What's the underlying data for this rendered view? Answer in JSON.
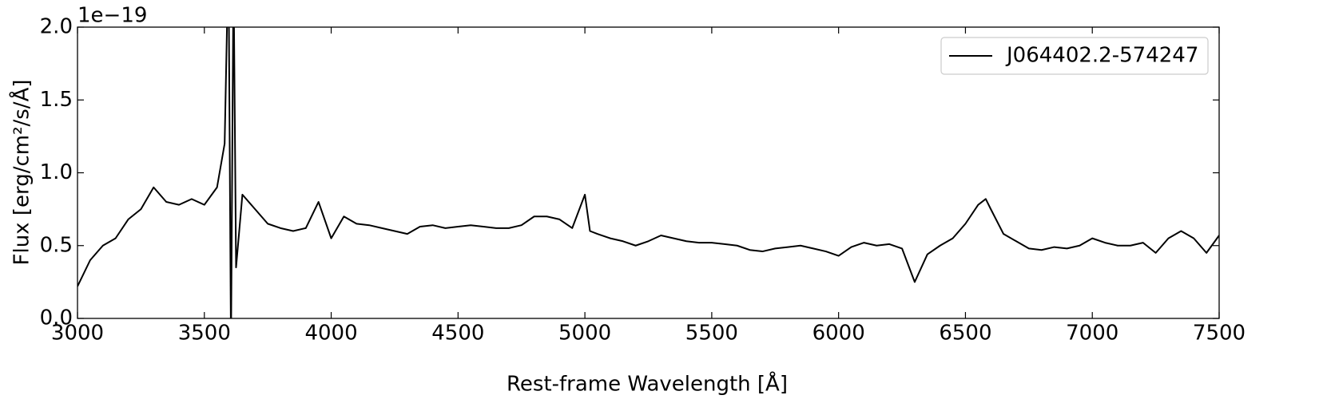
{
  "chart_data": {
    "type": "line",
    "x_label": "Rest-frame Wavelength [Å]",
    "y_label": "Flux [erg/cm²/s/Å]",
    "y_offset_label": "1e−19",
    "x": [
      3000,
      3050,
      3100,
      3150,
      3200,
      3250,
      3300,
      3350,
      3400,
      3450,
      3500,
      3550,
      3580,
      3595,
      3605,
      3615,
      3625,
      3650,
      3700,
      3750,
      3800,
      3850,
      3900,
      3950,
      4000,
      4050,
      4100,
      4150,
      4200,
      4250,
      4300,
      4350,
      4400,
      4450,
      4500,
      4550,
      4600,
      4650,
      4700,
      4750,
      4800,
      4850,
      4900,
      4950,
      5000,
      5020,
      5050,
      5100,
      5150,
      5200,
      5250,
      5300,
      5350,
      5400,
      5450,
      5500,
      5550,
      5600,
      5650,
      5700,
      5750,
      5800,
      5850,
      5900,
      5950,
      6000,
      6050,
      6100,
      6150,
      6200,
      6250,
      6300,
      6350,
      6400,
      6450,
      6500,
      6550,
      6580,
      6600,
      6650,
      6700,
      6750,
      6800,
      6850,
      6900,
      6950,
      7000,
      7050,
      7100,
      7150,
      7200,
      7250,
      7300,
      7350,
      7400,
      7450,
      7500
    ],
    "series": [
      {
        "name": "J064402.2-574247",
        "color": "#000000",
        "values": [
          0.22,
          0.4,
          0.5,
          0.55,
          0.68,
          0.75,
          0.9,
          0.8,
          0.78,
          0.82,
          0.78,
          0.9,
          1.2,
          2.5,
          -0.2,
          2.4,
          0.35,
          0.85,
          0.75,
          0.65,
          0.62,
          0.6,
          0.62,
          0.8,
          0.55,
          0.7,
          0.65,
          0.64,
          0.62,
          0.6,
          0.58,
          0.63,
          0.64,
          0.62,
          0.63,
          0.64,
          0.63,
          0.62,
          0.62,
          0.64,
          0.7,
          0.7,
          0.68,
          0.62,
          0.85,
          0.6,
          0.58,
          0.55,
          0.53,
          0.5,
          0.53,
          0.57,
          0.55,
          0.53,
          0.52,
          0.52,
          0.51,
          0.5,
          0.47,
          0.46,
          0.48,
          0.49,
          0.5,
          0.48,
          0.46,
          0.43,
          0.49,
          0.52,
          0.5,
          0.51,
          0.48,
          0.25,
          0.44,
          0.5,
          0.55,
          0.65,
          0.78,
          0.82,
          0.75,
          0.58,
          0.53,
          0.48,
          0.47,
          0.49,
          0.48,
          0.5,
          0.55,
          0.52,
          0.5,
          0.5,
          0.52,
          0.45,
          0.55,
          0.6,
          0.55,
          0.45,
          0.57
        ]
      }
    ],
    "xlim": [
      3000,
      7500
    ],
    "ylim": [
      0,
      2
    ],
    "xticks": [
      3000,
      3500,
      4000,
      4500,
      5000,
      5500,
      6000,
      6500,
      7000,
      7500
    ],
    "yticks": [
      {
        "value": 0,
        "label": "0.0"
      },
      0.5,
      {
        "value": 1,
        "label": "1.0"
      },
      1.5,
      {
        "value": 2,
        "label": "2.0"
      }
    ],
    "legend": "upper right",
    "grid": false
  }
}
